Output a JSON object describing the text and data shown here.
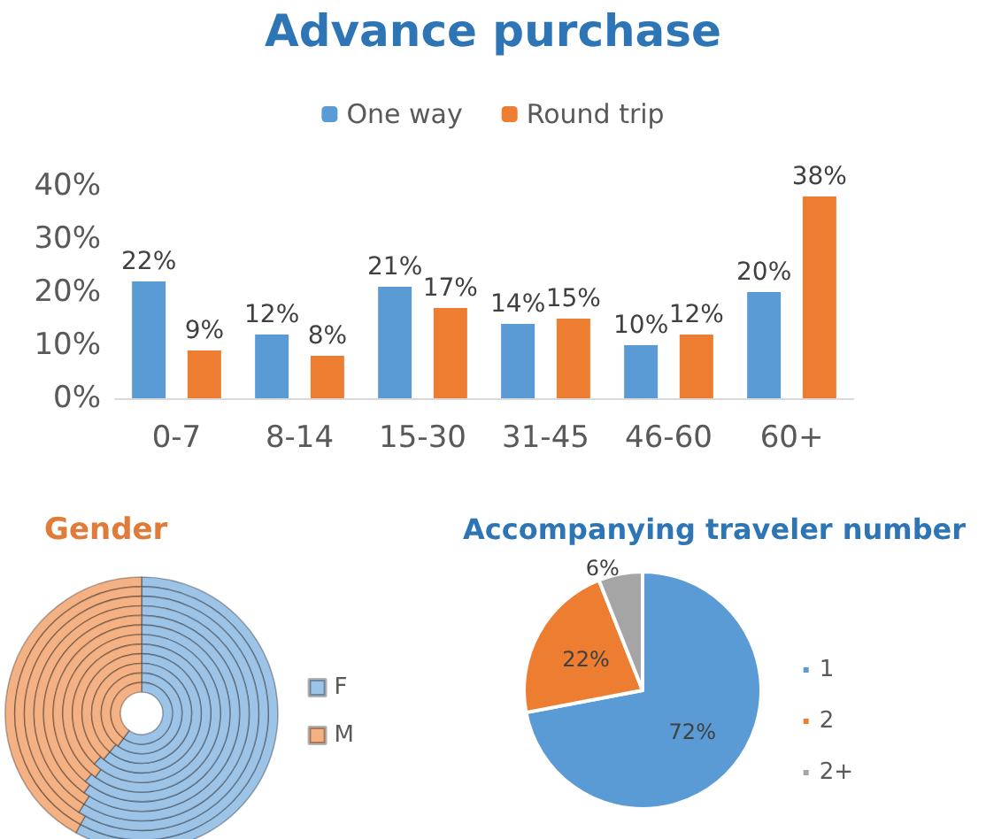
{
  "chart_data": [
    {
      "type": "bar",
      "title": "Advance purchase",
      "categories": [
        "0-7",
        "8-14",
        "15-30",
        "31-45",
        "46-60",
        "60+"
      ],
      "series": [
        {
          "name": "One way",
          "color": "#5b9bd5",
          "values": [
            22,
            12,
            21,
            14,
            10,
            20
          ],
          "value_labels": [
            "22%",
            "12%",
            "21%",
            "14%",
            "10%",
            "20%"
          ]
        },
        {
          "name": "Round trip",
          "color": "#ed7d31",
          "values": [
            9,
            8,
            17,
            15,
            12,
            38
          ],
          "value_labels": [
            "9%",
            "8%",
            "17%",
            "15%",
            "12%",
            "38%"
          ]
        }
      ],
      "ylim": [
        0,
        40
      ],
      "yticks": [
        {
          "value": 0,
          "label": "0%"
        },
        {
          "value": 10,
          "label": "10%"
        },
        {
          "value": 20,
          "label": "20%"
        },
        {
          "value": 30,
          "label": "30%"
        },
        {
          "value": 40,
          "label": "40%"
        }
      ],
      "grid": false,
      "legend": "top"
    },
    {
      "type": "donut",
      "title": "Gender",
      "categories": [
        "F",
        "M"
      ],
      "colors": [
        "#9dc3e6",
        "#f4b183"
      ],
      "series": [
        {
          "values": [
            58,
            42
          ]
        },
        {
          "values": [
            58,
            42
          ]
        },
        {
          "values": [
            59,
            41
          ]
        },
        {
          "values": [
            59,
            41
          ]
        },
        {
          "values": [
            60,
            40
          ]
        },
        {
          "values": [
            61,
            39
          ]
        },
        {
          "values": [
            60,
            40
          ]
        },
        {
          "values": [
            62,
            38
          ]
        },
        {
          "values": [
            61,
            39
          ]
        },
        {
          "values": [
            61,
            39
          ]
        },
        {
          "values": [
            60,
            40
          ]
        },
        {
          "values": [
            60,
            40
          ]
        }
      ],
      "legend": "right"
    },
    {
      "type": "pie",
      "title": "Accompanying traveler number",
      "categories": [
        "1",
        "2",
        "2+"
      ],
      "values": [
        72,
        22,
        6
      ],
      "colors": [
        "#5b9bd5",
        "#ed7d31",
        "#a5a5a5"
      ],
      "value_labels": [
        "72%",
        "22%",
        "6%"
      ],
      "legend": "right"
    }
  ]
}
